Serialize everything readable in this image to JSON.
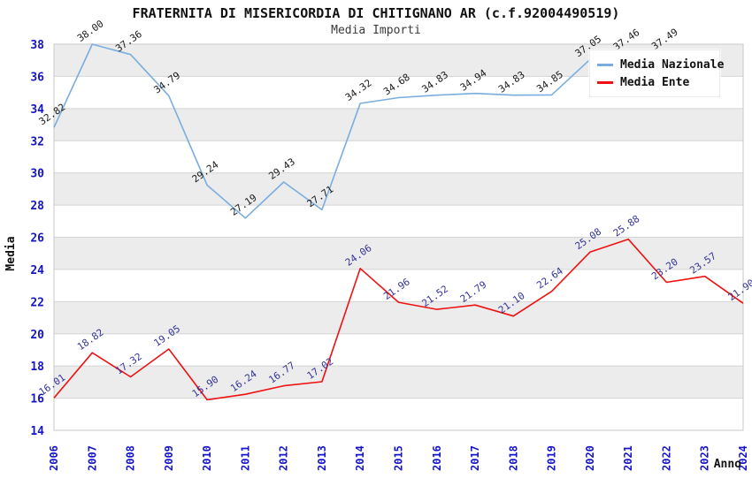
{
  "title": "FRATERNITA DI MISERICORDIA DI CHITIGNANO AR (c.f.92004490519)",
  "subtitle": "Media Importi",
  "chart_data": {
    "type": "line",
    "x": [
      2006,
      2007,
      2008,
      2009,
      2010,
      2011,
      2012,
      2013,
      2014,
      2015,
      2016,
      2017,
      2018,
      2019,
      2020,
      2021,
      2022,
      2023,
      2024
    ],
    "series": [
      {
        "name": "Media Nazionale",
        "color": "#7aaddf",
        "label_color": "#1a1a1a",
        "values": [
          32.82,
          38.0,
          37.36,
          34.79,
          29.24,
          27.19,
          29.43,
          27.71,
          34.32,
          34.68,
          34.83,
          34.94,
          34.83,
          34.85,
          37.05,
          37.46,
          37.49,
          null,
          null
        ]
      },
      {
        "name": "Media Ente",
        "color": "#ee1111",
        "label_color": "#333399",
        "values": [
          16.01,
          18.82,
          17.32,
          19.05,
          15.9,
          16.24,
          16.77,
          17.02,
          24.06,
          21.96,
          21.52,
          21.79,
          21.1,
          22.64,
          25.08,
          25.88,
          23.2,
          23.57,
          21.9
        ]
      }
    ],
    "xlabel": "Anno",
    "ylabel": "Media",
    "ylim": [
      14,
      38
    ],
    "yticks": [
      14,
      16,
      18,
      20,
      22,
      24,
      26,
      28,
      30,
      32,
      34,
      36,
      38
    ],
    "grid": true,
    "band_fill_every_other": true,
    "legend_position": "top-right"
  },
  "colors": {
    "tick_label": "#1414cc",
    "band_gray": "#ececec",
    "gridline": "#d4d4d4",
    "plot_border": "#c8c8c8",
    "axis_title": "#111111"
  }
}
